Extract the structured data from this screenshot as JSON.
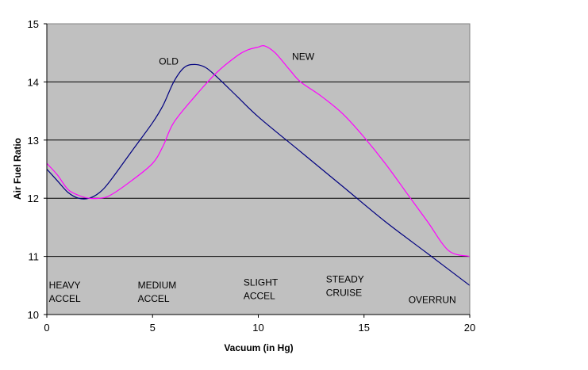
{
  "chart_data": {
    "type": "line",
    "title": "",
    "xlabel": "Vacuum (in Hg)",
    "ylabel": "Air Fuel Ratio",
    "xlim": [
      0,
      20
    ],
    "ylim": [
      10,
      15
    ],
    "xticks": [
      0,
      5,
      10,
      15,
      20
    ],
    "yticks": [
      10,
      11,
      12,
      13,
      14,
      15
    ],
    "grid": "horizontal",
    "legend": "none",
    "plot_background": "#c0c0c0",
    "series": [
      {
        "name": "OLD",
        "color": "#000080",
        "x": [
          0,
          0.5,
          1,
          1.5,
          2,
          2.5,
          3,
          4,
          5,
          5.5,
          6,
          6.5,
          7,
          7.5,
          8,
          9,
          10,
          12,
          14,
          16,
          18,
          20
        ],
        "y": [
          12.5,
          12.3,
          12.1,
          12.0,
          12.0,
          12.1,
          12.3,
          12.8,
          13.3,
          13.6,
          14.0,
          14.25,
          14.3,
          14.25,
          14.1,
          13.75,
          13.4,
          12.8,
          12.2,
          11.6,
          11.05,
          10.5
        ]
      },
      {
        "name": "NEW",
        "color": "#ff00ff",
        "x": [
          0,
          0.5,
          1,
          1.5,
          2,
          2.5,
          3,
          4,
          5,
          5.5,
          6,
          7,
          8,
          9,
          9.5,
          10,
          10.3,
          10.8,
          11.5,
          12,
          13,
          14,
          15,
          16,
          17,
          18,
          19,
          20
        ],
        "y": [
          12.6,
          12.4,
          12.15,
          12.05,
          12.0,
          12.0,
          12.05,
          12.3,
          12.6,
          12.9,
          13.3,
          13.75,
          14.15,
          14.45,
          14.55,
          14.6,
          14.62,
          14.5,
          14.2,
          14.0,
          13.75,
          13.45,
          13.05,
          12.6,
          12.1,
          11.6,
          11.1,
          11.0
        ]
      }
    ],
    "annotations": [
      {
        "lines": [
          "HEAVY",
          "ACCEL"
        ],
        "x": 0.1,
        "y": 10.45
      },
      {
        "lines": [
          "MEDIUM",
          "ACCEL"
        ],
        "x": 4.3,
        "y": 10.45
      },
      {
        "lines": [
          "SLIGHT",
          "ACCEL"
        ],
        "x": 9.3,
        "y": 10.5
      },
      {
        "lines": [
          "STEADY",
          "CRUISE"
        ],
        "x": 13.2,
        "y": 10.55
      },
      {
        "lines": [
          "OVERRUN"
        ],
        "x": 17.1,
        "y": 10.2
      },
      {
        "lines": [
          "OLD"
        ],
        "x": 5.3,
        "y": 14.3
      },
      {
        "lines": [
          "NEW"
        ],
        "x": 11.6,
        "y": 14.38
      }
    ]
  }
}
